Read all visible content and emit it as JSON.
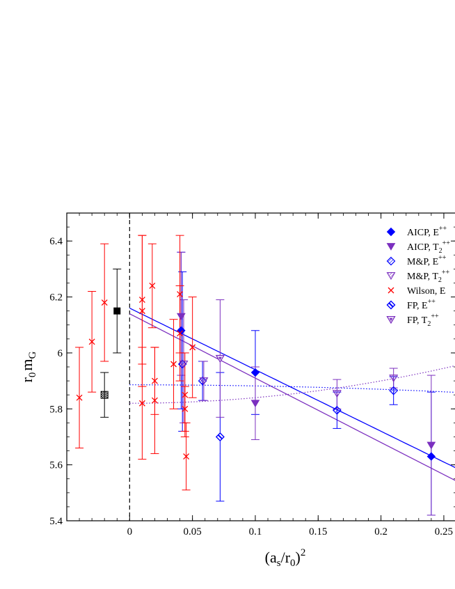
{
  "chart_data": {
    "type": "scatter",
    "title": "",
    "xlabel": {
      "base": "(a",
      "sub": "s",
      "mid": "/r",
      "sub2": "0",
      "close": ")",
      "sup": "2"
    },
    "ylabel": {
      "base": "r",
      "sub": "0",
      "mid": "m",
      "sub2": "G"
    },
    "xlim": [
      -0.05,
      0.26
    ],
    "ylim": [
      5.4,
      6.5
    ],
    "x_ticks": [
      0,
      0.05,
      0.1,
      0.15,
      0.2,
      0.25
    ],
    "x_tick_labels": [
      "0",
      "0.05",
      "0.1",
      "0.15",
      "0.2",
      "0.25"
    ],
    "y_ticks": [
      5.4,
      5.6,
      5.8,
      6.0,
      6.2,
      6.4
    ],
    "y_tick_labels": [
      "5.4",
      "5.6",
      "5.8",
      "6",
      "6.2",
      "6.4"
    ],
    "legend_position": "top-right",
    "legend": [
      {
        "label": "AICP, E++",
        "text": "AICP, E",
        "sup": "++",
        "sub": "",
        "marker": "diamond-filled",
        "color": "#0000ff"
      },
      {
        "label": "AICP, T2++",
        "text": "AICP, T",
        "sup": "++",
        "sub": "2",
        "marker": "triangle-down-filled",
        "color": "#7b2fbf"
      },
      {
        "label": "M&P, E++",
        "text": "M&P, E",
        "sup": "++",
        "sub": "",
        "marker": "diamond-hatched",
        "color": "#0000ff"
      },
      {
        "label": "M&P, T2++",
        "text": "M&P, T",
        "sup": "++",
        "sub": "2",
        "marker": "triangle-down-hatched",
        "color": "#7b2fbf"
      },
      {
        "label": "Wilson, E++",
        "text": "Wilson, E",
        "sup": "",
        "sub": "",
        "marker": "x",
        "color": "#ff0000"
      },
      {
        "label": "FP, E++",
        "text": "FP, E",
        "sup": "++",
        "sub": "",
        "marker": "diamond-half",
        "color": "#0000ff"
      },
      {
        "label": "FP, T2++",
        "text": "FP, T",
        "sup": "++",
        "sub": "2",
        "marker": "triangle-down-half",
        "color": "#7b2fbf"
      }
    ],
    "series": [
      {
        "name": "AICP, E++",
        "marker": "diamond-filled",
        "color": "#0000ff",
        "points": [
          {
            "x": 0.041,
            "y": 6.08,
            "lo": 5.8,
            "hi": 6.36
          },
          {
            "x": 0.1,
            "y": 5.93,
            "lo": 5.78,
            "hi": 6.08
          },
          {
            "x": 0.24,
            "y": 5.63,
            "lo": 5.42,
            "hi": 5.86
          }
        ]
      },
      {
        "name": "AICP, T2++",
        "marker": "triangle-down-filled",
        "color": "#7b2fbf",
        "points": [
          {
            "x": 0.041,
            "y": 6.13,
            "lo": 5.92,
            "hi": 6.36
          },
          {
            "x": 0.1,
            "y": 5.82,
            "lo": 5.69,
            "hi": 5.95
          },
          {
            "x": 0.24,
            "y": 5.67,
            "lo": 5.42,
            "hi": 5.92
          }
        ]
      },
      {
        "name": "M&P, E++",
        "marker": "diamond-hatched",
        "color": "#0000ff",
        "points": [
          {
            "x": 0.042,
            "y": 5.96,
            "lo": 5.72,
            "hi": 6.29
          },
          {
            "x": 0.058,
            "y": 5.9,
            "lo": 5.83,
            "hi": 5.97
          },
          {
            "x": 0.165,
            "y": 5.795,
            "lo": 5.73,
            "hi": 5.86
          },
          {
            "x": 0.21,
            "y": 5.865,
            "lo": 5.815,
            "hi": 5.915
          }
        ]
      },
      {
        "name": "M&P, T2++",
        "marker": "triangle-down-hatched",
        "color": "#7b2fbf",
        "points": [
          {
            "x": 0.043,
            "y": 5.96,
            "lo": 5.75,
            "hi": 6.19
          },
          {
            "x": 0.059,
            "y": 5.9,
            "lo": 5.83,
            "hi": 5.97
          },
          {
            "x": 0.165,
            "y": 5.855,
            "lo": 5.8,
            "hi": 5.905
          },
          {
            "x": 0.21,
            "y": 5.91,
            "lo": 5.875,
            "hi": 5.945
          }
        ]
      },
      {
        "name": "Wilson, E++",
        "marker": "x",
        "color": "#ff0000",
        "points": [
          {
            "x": -0.04,
            "y": 5.84,
            "lo": 5.66,
            "hi": 6.02
          },
          {
            "x": -0.03,
            "y": 6.04,
            "lo": 5.86,
            "hi": 6.22
          },
          {
            "x": -0.02,
            "y": 6.18,
            "lo": 5.97,
            "hi": 6.39
          },
          {
            "x": 0.01,
            "y": 6.19,
            "lo": 5.96,
            "hi": 6.42
          },
          {
            "x": 0.01,
            "y": 6.15,
            "lo": 5.88,
            "hi": 6.42
          },
          {
            "x": 0.01,
            "y": 5.82,
            "lo": 5.62,
            "hi": 6.02
          },
          {
            "x": 0.018,
            "y": 6.24,
            "lo": 6.09,
            "hi": 6.39
          },
          {
            "x": 0.02,
            "y": 5.9,
            "lo": 5.78,
            "hi": 6.02
          },
          {
            "x": 0.02,
            "y": 5.83,
            "lo": 5.64,
            "hi": 6.02
          },
          {
            "x": 0.035,
            "y": 5.96,
            "lo": 5.8,
            "hi": 6.12
          },
          {
            "x": 0.04,
            "y": 6.21,
            "lo": 6.0,
            "hi": 6.42
          },
          {
            "x": 0.04,
            "y": 6.07,
            "lo": 5.9,
            "hi": 6.24
          },
          {
            "x": 0.044,
            "y": 5.85,
            "lo": 5.7,
            "hi": 6.0
          },
          {
            "x": 0.044,
            "y": 5.8,
            "lo": 5.72,
            "hi": 5.88
          },
          {
            "x": 0.045,
            "y": 5.63,
            "lo": 5.51,
            "hi": 5.75
          },
          {
            "x": 0.05,
            "y": 6.02,
            "lo": 5.84,
            "hi": 6.2
          }
        ]
      },
      {
        "name": "FP, E++",
        "marker": "diamond-half",
        "color": "#0000ff",
        "points": [
          {
            "x": 0.072,
            "y": 5.7,
            "lo": 5.47,
            "hi": 5.93
          }
        ]
      },
      {
        "name": "FP, T2++",
        "marker": "triangle-down-half",
        "color": "#7b2fbf",
        "points": [
          {
            "x": 0.072,
            "y": 5.98,
            "lo": 5.77,
            "hi": 6.19
          }
        ]
      },
      {
        "name": "",
        "marker": "square-filled",
        "color": "#000000",
        "points": [
          {
            "x": -0.01,
            "y": 6.15,
            "lo": 6.0,
            "hi": 6.3
          }
        ]
      },
      {
        "name": "",
        "marker": "square-checked",
        "color": "#000000",
        "points": [
          {
            "x": -0.02,
            "y": 5.85,
            "lo": 5.77,
            "hi": 5.93
          }
        ]
      }
    ],
    "fit_lines": [
      {
        "kind": "linear",
        "color": "#0000ff",
        "style": "solid",
        "x0": 0,
        "x1": 0.26,
        "y0": 6.16,
        "slope": -2.2
      },
      {
        "kind": "linear",
        "color": "#7b2fbf",
        "style": "solid",
        "x0": 0,
        "x1": 0.26,
        "y0": 6.14,
        "slope": -2.3
      },
      {
        "kind": "quadratic",
        "color": "#0000ff",
        "style": "dotted",
        "x0": 0,
        "x1": 0.26,
        "a": 5.886,
        "b": 0,
        "c": -0.4
      },
      {
        "kind": "quadratic",
        "color": "#7b2fbf",
        "style": "dotted",
        "x0": 0,
        "x1": 0.26,
        "a": 5.82,
        "b": 0,
        "c": 2.0
      }
    ],
    "zero_line": {
      "x": 0,
      "style": "dashed",
      "color": "#000000"
    }
  }
}
